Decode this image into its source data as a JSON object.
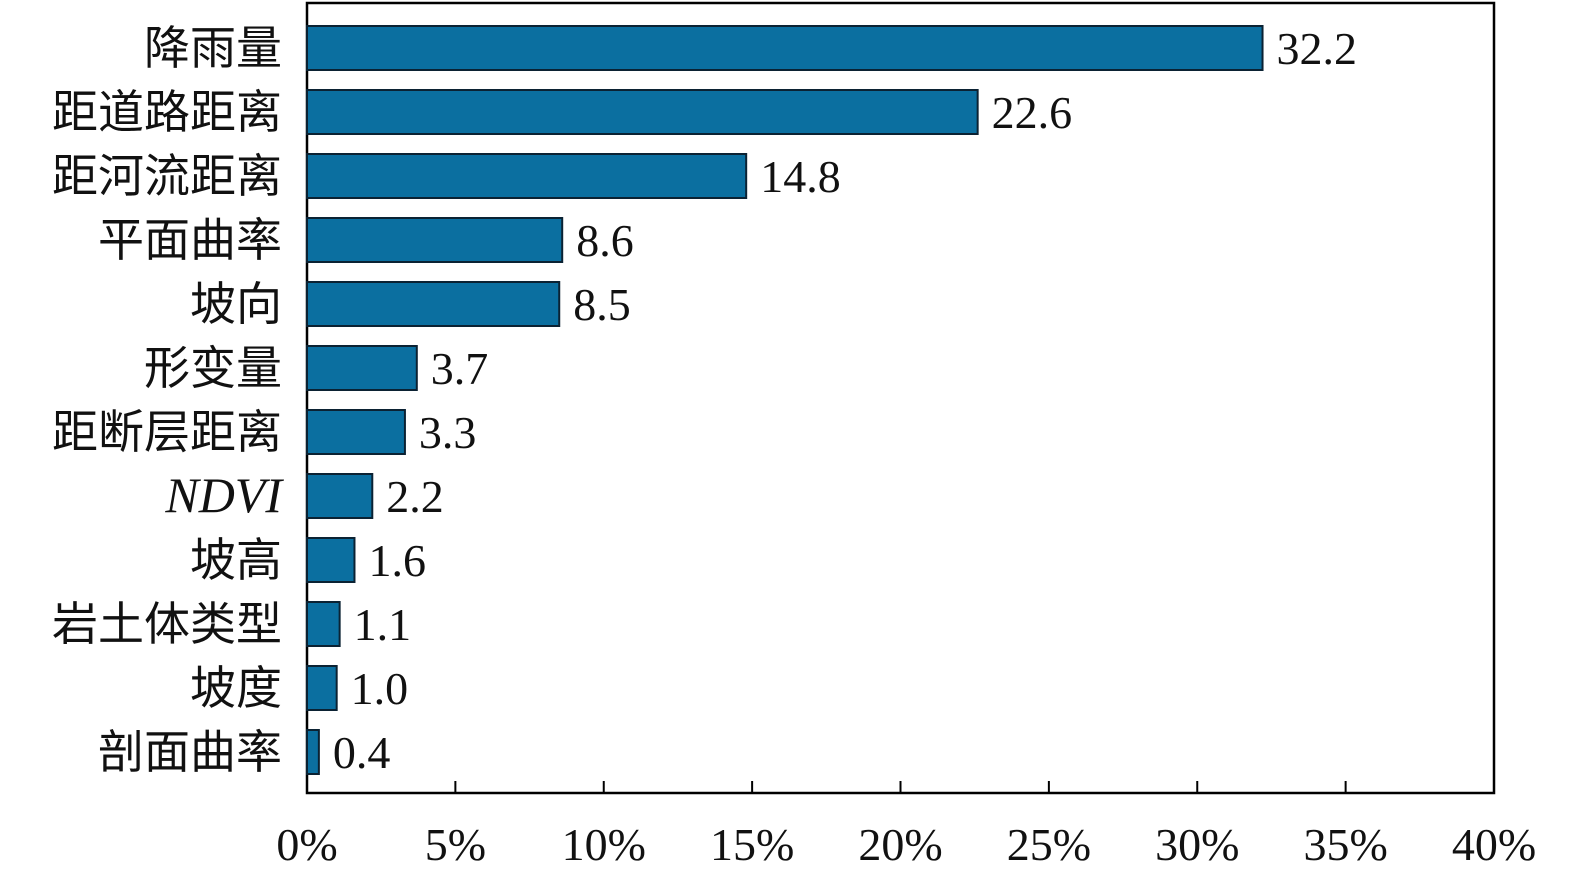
{
  "chart_data": {
    "type": "bar",
    "orientation": "horizontal",
    "categories": [
      "降雨量",
      "距道路距离",
      "距河流距离",
      "平面曲率",
      "坡向",
      "形变量",
      "距断层距离",
      "NDVI",
      "坡高",
      "岩土体类型",
      "坡度",
      "剖面曲率"
    ],
    "italic_categories": [
      "NDVI"
    ],
    "values": [
      32.2,
      22.6,
      14.8,
      8.6,
      8.5,
      3.7,
      3.3,
      2.2,
      1.6,
      1.1,
      1.0,
      0.4
    ],
    "value_labels": [
      "32.2",
      "22.6",
      "14.8",
      "8.6",
      "8.5",
      "3.7",
      "3.3",
      "2.2",
      "1.6",
      "1.1",
      "1.0",
      "0.4"
    ],
    "xlim": [
      0,
      40
    ],
    "xticks": [
      0,
      5,
      10,
      15,
      20,
      25,
      30,
      35,
      40
    ],
    "xtick_labels": [
      "0%",
      "5%",
      "10%",
      "15%",
      "20%",
      "25%",
      "30%",
      "35%",
      "40%"
    ],
    "title": "",
    "xlabel": "",
    "ylabel": "",
    "grid": false,
    "legend": "none",
    "bar_color": "#0b6fa0"
  }
}
